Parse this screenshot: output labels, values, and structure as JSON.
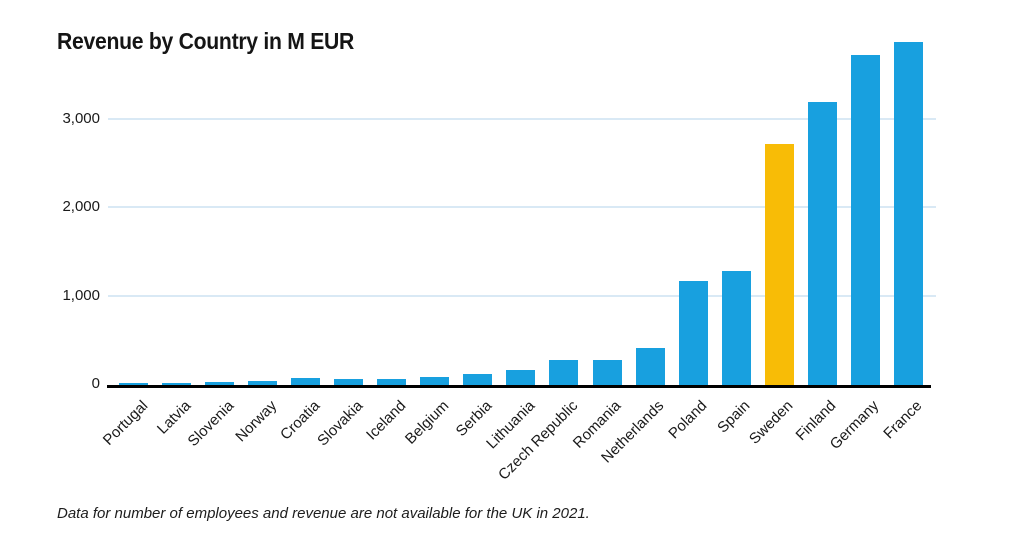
{
  "title": "Revenue by Country in M EUR",
  "footnote": "Data for number of employees and revenue are not available for the UK in 2021.",
  "chart_data": {
    "type": "bar",
    "title": "Revenue by Country in M EUR",
    "categories": [
      "Portugal",
      "Latvia",
      "Slovenia",
      "Norway",
      "Croatia",
      "Slovakia",
      "Iceland",
      "Belgium",
      "Serbia",
      "Lithuania",
      "Czech Republic",
      "Romania",
      "Netherlands",
      "Poland",
      "Spain",
      "Sweden",
      "Finland",
      "Germany",
      "France"
    ],
    "values": [
      25,
      28,
      30,
      45,
      80,
      72,
      72,
      90,
      120,
      165,
      285,
      285,
      420,
      1180,
      1290,
      2730,
      3200,
      3740,
      3880
    ],
    "highlight_category": "Sweden",
    "xlabel": "",
    "ylabel": "",
    "ylim": [
      0,
      3940
    ],
    "yticks": [
      {
        "value": 0,
        "label": "0"
      },
      {
        "value": 1000,
        "label": "1,000"
      },
      {
        "value": 2000,
        "label": "2,000"
      },
      {
        "value": 3000,
        "label": "3,000"
      }
    ],
    "grid": "horizontal",
    "legend": "none",
    "colors": {
      "bar": "#18a0df",
      "highlight": "#f8bc06",
      "gridline": "#d9e9f5",
      "axis": "#000000",
      "text": "#1a1a1a"
    }
  }
}
